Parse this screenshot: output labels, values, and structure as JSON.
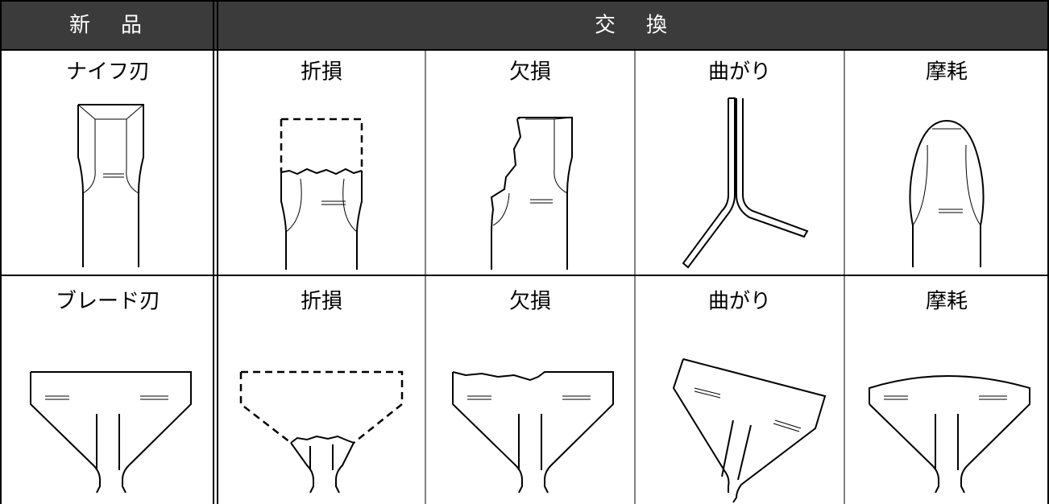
{
  "header": {
    "new": "新　品",
    "replace": "交　換"
  },
  "rows": [
    {
      "label": "ナイフ刃",
      "cells": [
        "折損",
        "欠損",
        "曲がり",
        "摩耗"
      ]
    },
    {
      "label": "ブレード刃",
      "cells": [
        "折損",
        "欠損",
        "曲がり",
        "摩耗"
      ]
    }
  ]
}
